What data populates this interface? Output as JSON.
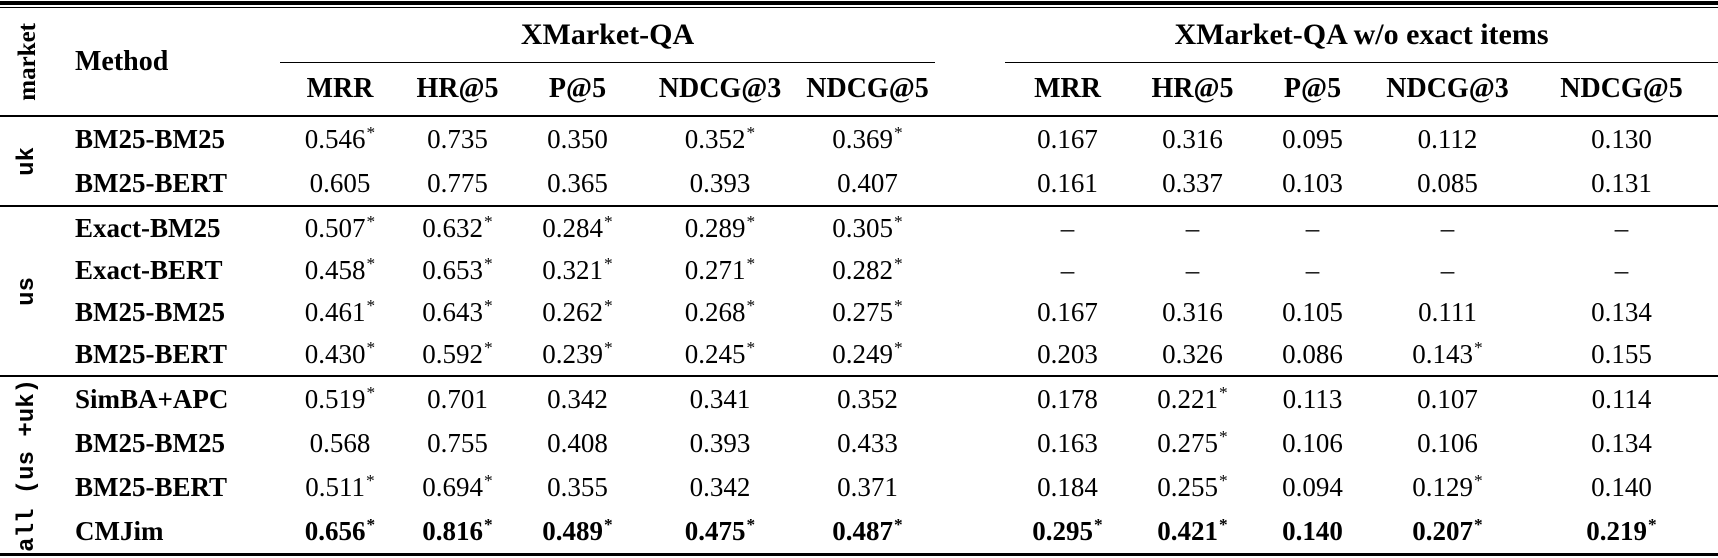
{
  "table": {
    "corner": {
      "market_label": "market",
      "method_label": "Method"
    },
    "groups": [
      {
        "title": "XMarket-QA",
        "columns": [
          "MRR",
          "HR@5",
          "P@5",
          "NDCG@3",
          "NDCG@5"
        ]
      },
      {
        "title": "XMarket-QA w/o exact items",
        "columns": [
          "MRR",
          "HR@5",
          "P@5",
          "NDCG@3",
          "NDCG@5"
        ]
      }
    ],
    "missing_value_symbol": "–",
    "significance_marker": "*",
    "sections": [
      {
        "market": "uk",
        "rows": [
          {
            "method": "BM25-BM25",
            "bold": false,
            "values": [
              "0.546*",
              "0.735",
              "0.350",
              "0.352*",
              "0.369*",
              "0.167",
              "0.316",
              "0.095",
              "0.112",
              "0.130"
            ]
          },
          {
            "method": "BM25-BERT",
            "bold": false,
            "values": [
              "0.605",
              "0.775",
              "0.365",
              "0.393",
              "0.407",
              "0.161",
              "0.337",
              "0.103",
              "0.085",
              "0.131"
            ]
          }
        ]
      },
      {
        "market": "us",
        "rows": [
          {
            "method": "Exact-BM25",
            "bold": false,
            "values": [
              "0.507*",
              "0.632*",
              "0.284*",
              "0.289*",
              "0.305*",
              "–",
              "–",
              "–",
              "–",
              "–"
            ]
          },
          {
            "method": "Exact-BERT",
            "bold": false,
            "values": [
              "0.458*",
              "0.653*",
              "0.321*",
              "0.271*",
              "0.282*",
              "–",
              "–",
              "–",
              "–",
              "–"
            ]
          },
          {
            "method": "BM25-BM25",
            "bold": false,
            "values": [
              "0.461*",
              "0.643*",
              "0.262*",
              "0.268*",
              "0.275*",
              "0.167",
              "0.316",
              "0.105",
              "0.111",
              "0.134"
            ]
          },
          {
            "method": "BM25-BERT",
            "bold": false,
            "values": [
              "0.430*",
              "0.592*",
              "0.239*",
              "0.245*",
              "0.249*",
              "0.203",
              "0.326",
              "0.086",
              "0.143*",
              "0.155"
            ]
          }
        ]
      },
      {
        "market": "all (us +uk)",
        "rows": [
          {
            "method": "SimBA+APC",
            "bold": false,
            "values": [
              "0.519*",
              "0.701",
              "0.342",
              "0.341",
              "0.352",
              "0.178",
              "0.221*",
              "0.113",
              "0.107",
              "0.114"
            ]
          },
          {
            "method": "BM25-BM25",
            "bold": false,
            "values": [
              "0.568",
              "0.755",
              "0.408",
              "0.393",
              "0.433",
              "0.163",
              "0.275*",
              "0.106",
              "0.106",
              "0.134"
            ]
          },
          {
            "method": "BM25-BERT",
            "bold": false,
            "values": [
              "0.511*",
              "0.694*",
              "0.355",
              "0.342",
              "0.371",
              "0.184",
              "0.255*",
              "0.094",
              "0.129*",
              "0.140"
            ]
          },
          {
            "method": "CMJim",
            "bold": true,
            "values": [
              "0.656*",
              "0.816*",
              "0.489*",
              "0.475*",
              "0.487*",
              "0.295*",
              "0.421*",
              "0.140",
              "0.207*",
              "0.219*"
            ]
          }
        ]
      }
    ]
  }
}
